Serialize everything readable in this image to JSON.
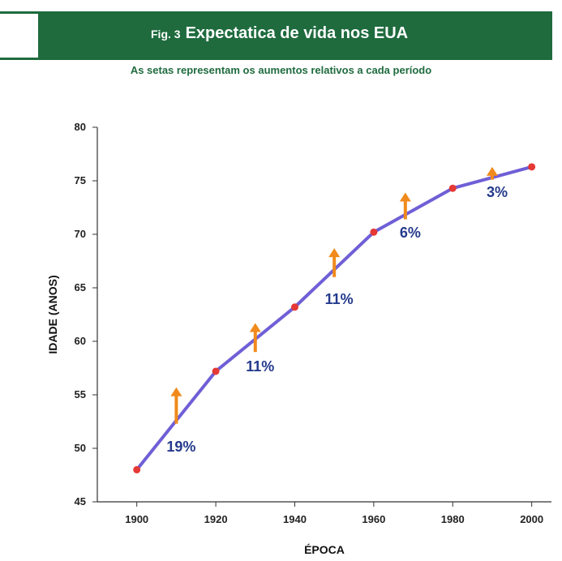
{
  "header": {
    "fig_label": "Fig. 3",
    "title": "Expectatica de vida nos EUA",
    "subtitle": "As setas representam os aumentos relativos  a cada período"
  },
  "colors": {
    "band": "#1f6b3e",
    "line": "#6f5fd6",
    "point": "#e53935",
    "arrow": "#f08a1c",
    "label": "#243a8c"
  },
  "chart_data": {
    "type": "line",
    "title": "Expectatica de vida nos EUA",
    "xlabel": "ÉPOCA",
    "ylabel": "IDADE (ANOS)",
    "xlim": [
      1890,
      2005
    ],
    "ylim": [
      45,
      80
    ],
    "x_ticks": [
      1900,
      1920,
      1940,
      1960,
      1980,
      2000
    ],
    "y_ticks": [
      45,
      50,
      55,
      60,
      65,
      70,
      75,
      80
    ],
    "grid": false,
    "series": [
      {
        "x": [
          1900,
          1920,
          1940,
          1960,
          1980,
          2000
        ],
        "values": [
          48,
          57.2,
          63.2,
          70.2,
          74.3,
          76.3
        ]
      }
    ],
    "annotations": [
      {
        "x": 1910,
        "y_start": 52.3,
        "y_end": 55.7,
        "label": "19%",
        "label_y": 49.7
      },
      {
        "x": 1930,
        "y_start": 59.0,
        "y_end": 61.7,
        "label": "11%",
        "label_y": 57.2
      },
      {
        "x": 1950,
        "y_start": 66.0,
        "y_end": 68.7,
        "label": "11%",
        "label_y": 63.5
      },
      {
        "x": 1968,
        "y_start": 71.4,
        "y_end": 73.9,
        "label": "6%",
        "label_y": 69.7
      },
      {
        "x": 1990,
        "y_start": 75.1,
        "y_end": 76.3,
        "label": "3%",
        "label_y": 73.5
      }
    ]
  }
}
